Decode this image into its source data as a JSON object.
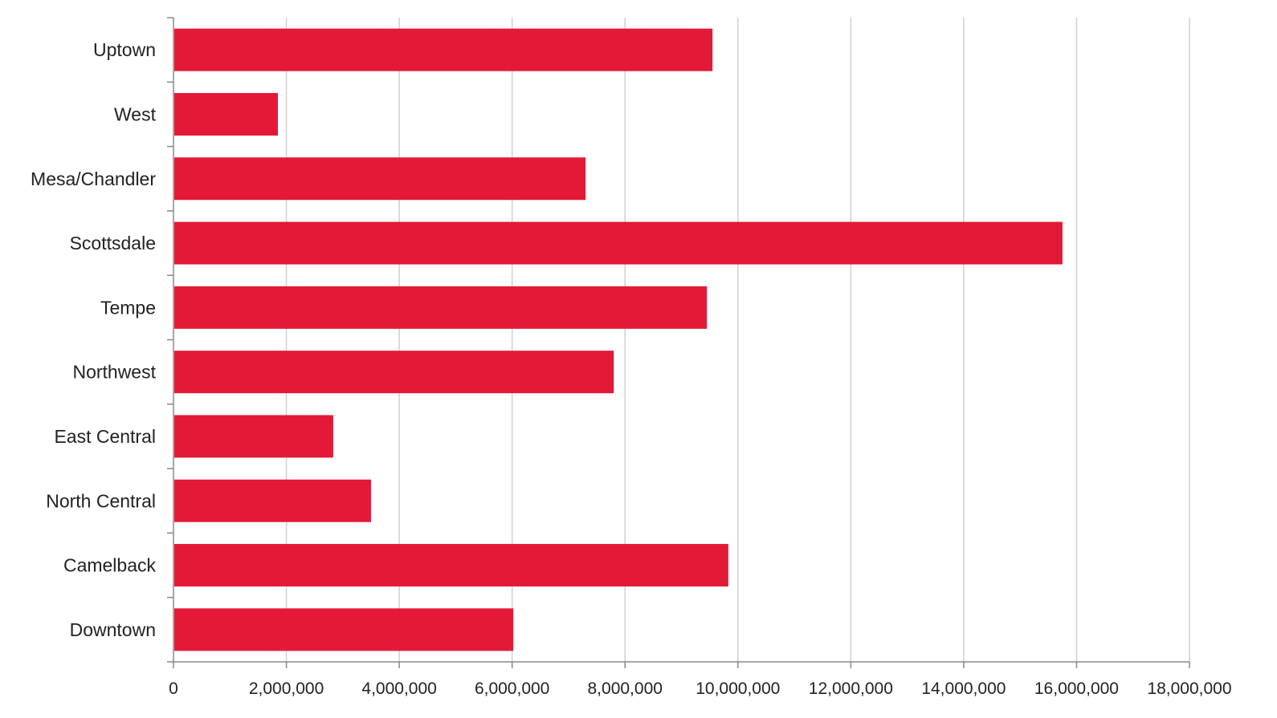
{
  "chart_data": {
    "type": "bar",
    "orientation": "horizontal",
    "categories": [
      "Uptown",
      "West",
      "Mesa/Chandler",
      "Scottsdale",
      "Tempe",
      "Northwest",
      "East Central",
      "North Central",
      "Camelback",
      "Downtown"
    ],
    "values": [
      9550000,
      1850000,
      7300000,
      15750000,
      9450000,
      7800000,
      2830000,
      3500000,
      9830000,
      6020000
    ],
    "xlim": [
      0,
      18000000
    ],
    "xticks": [
      0,
      2000000,
      4000000,
      6000000,
      8000000,
      10000000,
      12000000,
      14000000,
      16000000,
      18000000
    ],
    "xtick_labels": [
      "0",
      "2,000,000",
      "4,000,000",
      "6,000,000",
      "8,000,000",
      "10,000,000",
      "12,000,000",
      "14,000,000",
      "16,000,000",
      "18,000,000"
    ],
    "title": "",
    "xlabel": "",
    "ylabel": "",
    "grid": "vertical",
    "legend": "none",
    "bar_color": "#e31937"
  }
}
